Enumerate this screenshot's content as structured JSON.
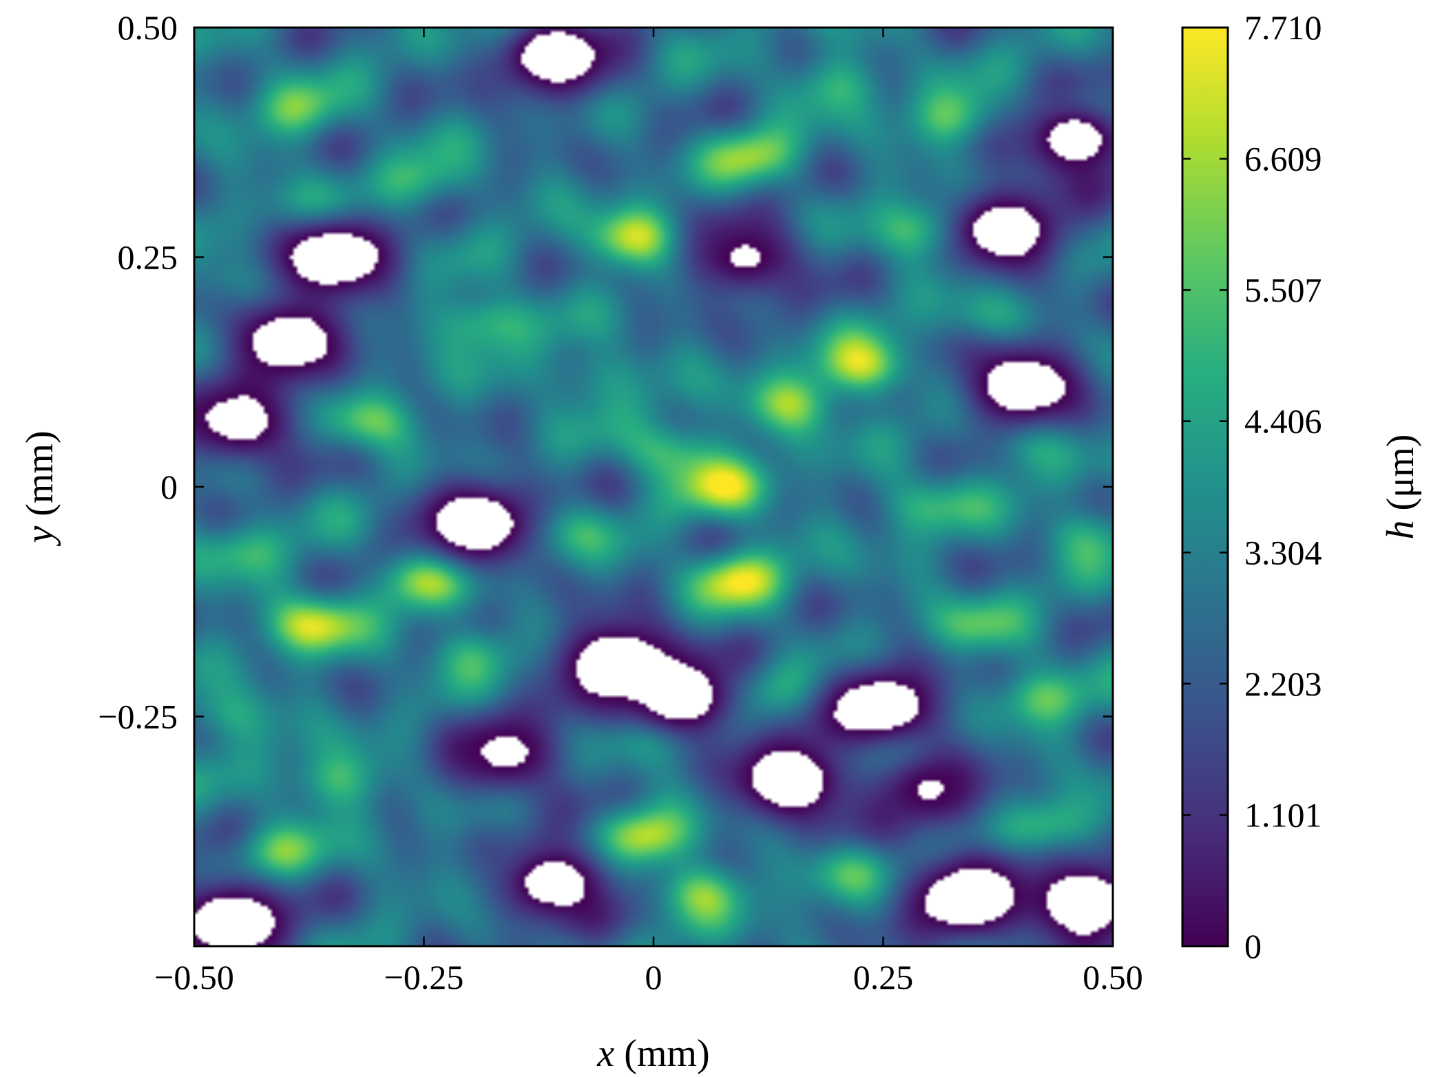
{
  "chart_data": {
    "type": "heatmap",
    "colormap": "viridis",
    "xlabel_var": "x",
    "xlabel_unit": "(mm)",
    "ylabel_var": "y",
    "ylabel_unit": "(mm)",
    "colorbar_label_var": "h",
    "colorbar_label_unit": "(μm)",
    "xlim": [
      -0.5,
      0.5
    ],
    "ylim": [
      -0.5,
      0.5
    ],
    "clim": [
      0,
      7.71
    ],
    "x_ticks": [
      {
        "value": -0.5,
        "label": "−0.50"
      },
      {
        "value": -0.25,
        "label": "−0.25"
      },
      {
        "value": 0,
        "label": "0"
      },
      {
        "value": 0.25,
        "label": "0.25"
      },
      {
        "value": 0.5,
        "label": "0.50"
      }
    ],
    "y_ticks": [
      {
        "value": -0.25,
        "label": "−0.25"
      },
      {
        "value": 0,
        "label": "0"
      },
      {
        "value": 0.25,
        "label": "0.25"
      },
      {
        "value": 0.5,
        "label": "0.50"
      }
    ],
    "colorbar_ticks": [
      {
        "value": 0,
        "label": "0"
      },
      {
        "value": 1.101,
        "label": "1.101"
      },
      {
        "value": 2.203,
        "label": "2.203"
      },
      {
        "value": 3.304,
        "label": "3.304"
      },
      {
        "value": 4.406,
        "label": "4.406"
      },
      {
        "value": 5.507,
        "label": "5.507"
      },
      {
        "value": 6.609,
        "label": "6.609"
      },
      {
        "value": 7.71,
        "label": "7.710"
      }
    ],
    "missing_data_color": "#ffffff",
    "peaks": [
      {
        "x": -0.02,
        "y": 0.27,
        "h": 7.3
      },
      {
        "x": 0.09,
        "y": -0.1,
        "h": 7.2
      },
      {
        "x": 0.3,
        "y": 0.28,
        "h": 7.2
      },
      {
        "x": 0.23,
        "y": 0.13,
        "h": 7.0
      },
      {
        "x": 0.08,
        "y": 0.0,
        "h": 6.6
      },
      {
        "x": -0.37,
        "y": -0.15,
        "h": 7.0
      },
      {
        "x": -0.01,
        "y": -0.38,
        "h": 7.2
      },
      {
        "x": -0.25,
        "y": -0.1,
        "h": 6.4
      },
      {
        "x": 0.11,
        "y": 0.36,
        "h": 6.1
      },
      {
        "x": -0.19,
        "y": 0.18,
        "h": 6.2
      },
      {
        "x": -0.31,
        "y": 0.07,
        "h": 6.0
      },
      {
        "x": 0.15,
        "y": 0.09,
        "h": 6.2
      },
      {
        "x": 0.33,
        "y": 0.4,
        "h": 6.0
      },
      {
        "x": 0.46,
        "y": 0.4,
        "h": 6.2
      },
      {
        "x": 0.0,
        "y": -0.27,
        "h": 6.1
      },
      {
        "x": 0.05,
        "y": -0.44,
        "h": 6.0
      },
      {
        "x": -0.41,
        "y": -0.4,
        "h": 5.9
      },
      {
        "x": -0.35,
        "y": -0.32,
        "h": 5.7
      },
      {
        "x": 0.43,
        "y": -0.37,
        "h": 6.0
      },
      {
        "x": 0.42,
        "y": -0.23,
        "h": 5.7
      },
      {
        "x": 0.26,
        "y": -0.29,
        "h": 5.8
      },
      {
        "x": 0.02,
        "y": 0.04,
        "h": 5.9
      },
      {
        "x": -0.39,
        "y": 0.41,
        "h": 5.4
      },
      {
        "x": -0.15,
        "y": 0.5,
        "h": 5.6
      },
      {
        "x": -0.38,
        "y": 0.3,
        "h": 5.2
      },
      {
        "x": -0.07,
        "y": 0.12,
        "h": 5.1
      },
      {
        "x": -0.2,
        "y": -0.18,
        "h": 5.4
      },
      {
        "x": 0.13,
        "y": -0.22,
        "h": 5.1
      },
      {
        "x": 0.35,
        "y": -0.15,
        "h": 5.3
      },
      {
        "x": 0.4,
        "y": 0.05,
        "h": 5.2
      },
      {
        "x": -0.46,
        "y": 0.22,
        "h": 5.0
      },
      {
        "x": -0.45,
        "y": -0.07,
        "h": 5.0
      },
      {
        "x": 0.3,
        "y": -0.02,
        "h": 5.1
      },
      {
        "x": -0.1,
        "y": -0.05,
        "h": 5.2
      },
      {
        "x": 0.2,
        "y": 0.44,
        "h": 5.0
      },
      {
        "x": -0.25,
        "y": 0.33,
        "h": 5.1
      },
      {
        "x": 0.36,
        "y": 0.18,
        "h": 5.1
      },
      {
        "x": -0.15,
        "y": -0.42,
        "h": 5.4
      },
      {
        "x": 0.21,
        "y": -0.42,
        "h": 5.1
      },
      {
        "x": -0.47,
        "y": -0.25,
        "h": 5.2
      },
      {
        "x": 0.47,
        "y": -0.05,
        "h": 5.0
      }
    ],
    "troughs": [
      {
        "x": -0.35,
        "y": 0.25,
        "h": 0.0
      },
      {
        "x": 0.4,
        "y": 0.11,
        "h": 0.0
      },
      {
        "x": -0.11,
        "y": 0.47,
        "h": 0.1
      },
      {
        "x": -0.46,
        "y": -0.47,
        "h": 0.0
      },
      {
        "x": -0.4,
        "y": 0.16,
        "h": 0.3
      },
      {
        "x": 0.15,
        "y": -0.32,
        "h": 0.0
      },
      {
        "x": -0.04,
        "y": -0.19,
        "h": 0.0
      },
      {
        "x": -0.19,
        "y": -0.04,
        "h": 0.0
      },
      {
        "x": 0.34,
        "y": -0.45,
        "h": 0.0
      },
      {
        "x": 0.47,
        "y": -0.45,
        "h": 0.0
      },
      {
        "x": 0.03,
        "y": -0.23,
        "h": 0.2
      },
      {
        "x": 0.25,
        "y": -0.24,
        "h": 0.1
      },
      {
        "x": 0.46,
        "y": 0.38,
        "h": 0.2
      },
      {
        "x": 0.38,
        "y": 0.28,
        "h": 0.2
      },
      {
        "x": -0.45,
        "y": 0.07,
        "h": 0.6
      },
      {
        "x": 0.1,
        "y": 0.25,
        "h": 1.0
      },
      {
        "x": -0.16,
        "y": -0.29,
        "h": 0.9
      },
      {
        "x": 0.3,
        "y": -0.33,
        "h": 1.1
      },
      {
        "x": -0.11,
        "y": -0.43,
        "h": 0.2
      }
    ]
  }
}
